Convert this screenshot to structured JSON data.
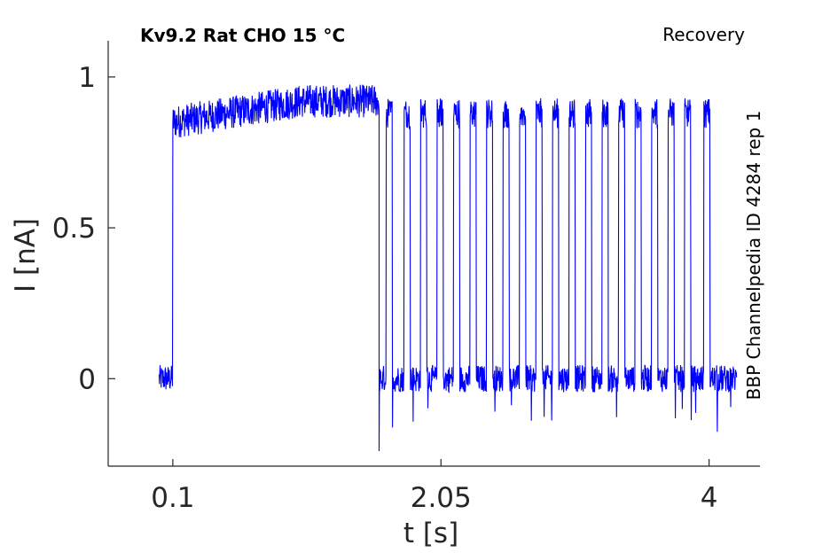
{
  "chart_data": {
    "type": "line",
    "title_left": "Kv9.2  Rat  CHO  15 °C",
    "title_right": "Recovery",
    "side_label": "BBP Channelpedia ID 4284 rep 1",
    "xlabel": "t [s]",
    "ylabel": "I [nA]",
    "xlim": [
      -0.37,
      4.37
    ],
    "ylim": [
      -0.29,
      1.12
    ],
    "x_ticks": [
      {
        "value": 0.1,
        "label": "0.1"
      },
      {
        "value": 2.05,
        "label": "2.05"
      },
      {
        "value": 4,
        "label": "4"
      }
    ],
    "y_ticks": [
      {
        "value": 0,
        "label": "0"
      },
      {
        "value": 0.5,
        "label": "0.5"
      },
      {
        "value": 1,
        "label": "1"
      }
    ],
    "series_color": "#0000ff",
    "trace": {
      "baseline_start": 0.0,
      "holding_end": 0.1,
      "depolarization_end": 1.6,
      "recording_end": 4.2,
      "plateau_start": 0.85,
      "plateau_end": 0.92,
      "recovery_level": 0.88,
      "pulse_times": [
        1.65,
        1.78,
        1.9,
        2.02,
        2.14,
        2.26,
        2.38,
        2.5,
        2.62,
        2.74,
        2.86,
        2.98,
        3.1,
        3.22,
        3.34,
        3.46,
        3.58,
        3.7,
        3.82,
        3.96
      ],
      "pulse_duration": 0.045
    }
  }
}
